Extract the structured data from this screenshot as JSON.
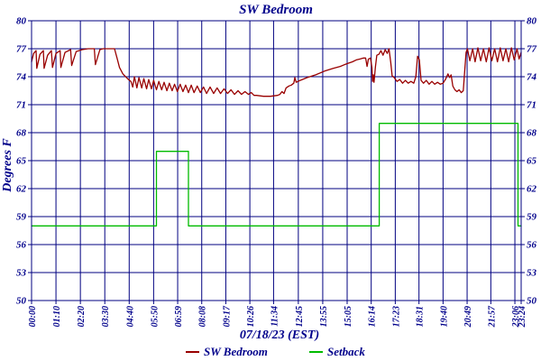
{
  "title": "SW Bedroom",
  "colors": {
    "grid": "#000080",
    "text": "#00008B",
    "sw_bedroom_line": "#990000",
    "setback_line": "#00BB00",
    "background": "#FFFFFF"
  },
  "legend": {
    "items": [
      {
        "label": "SW Bedroom",
        "color": "#990000"
      },
      {
        "label": "Setback",
        "color": "#00BB00"
      }
    ]
  },
  "chart_data": {
    "type": "line",
    "title": "SW Bedroom",
    "xlabel": "07/18/23 (EST)",
    "ylabel": "Degrees F",
    "ylim": [
      50,
      80
    ],
    "y_ticks": [
      80,
      77,
      74,
      71,
      68,
      65,
      62,
      59,
      56,
      53,
      50
    ],
    "x_range_minutes": [
      0,
      1404
    ],
    "x_ticks": [
      {
        "t": 0,
        "label": "00:00"
      },
      {
        "t": 70,
        "label": "01:10"
      },
      {
        "t": 140,
        "label": "02:20"
      },
      {
        "t": 210,
        "label": "03:30"
      },
      {
        "t": 280,
        "label": "04:40"
      },
      {
        "t": 350,
        "label": "05:50"
      },
      {
        "t": 419,
        "label": "06:59"
      },
      {
        "t": 488,
        "label": "08:08"
      },
      {
        "t": 557,
        "label": "09:17"
      },
      {
        "t": 626,
        "label": "10:26"
      },
      {
        "t": 694,
        "label": "11:34"
      },
      {
        "t": 765,
        "label": "12:45"
      },
      {
        "t": 835,
        "label": "13:55"
      },
      {
        "t": 905,
        "label": "15:05"
      },
      {
        "t": 974,
        "label": "16:14"
      },
      {
        "t": 1043,
        "label": "17:23"
      },
      {
        "t": 1111,
        "label": "18:31"
      },
      {
        "t": 1180,
        "label": "19:40"
      },
      {
        "t": 1249,
        "label": "20:49"
      },
      {
        "t": 1317,
        "label": "21:57"
      },
      {
        "t": 1386,
        "label": "23:06"
      },
      {
        "t": 1404,
        "label": "23:24"
      }
    ],
    "grid": true,
    "legend_position": "bottom",
    "series": [
      {
        "name": "SW Bedroom",
        "color": "#990000",
        "unit": "degF",
        "points": [
          [
            0,
            75.6
          ],
          [
            6,
            76.5
          ],
          [
            13,
            76.8
          ],
          [
            15,
            74.9
          ],
          [
            24,
            76.4
          ],
          [
            34,
            76.8
          ],
          [
            36,
            74.9
          ],
          [
            46,
            76.3
          ],
          [
            57,
            76.8
          ],
          [
            60,
            75.0
          ],
          [
            70,
            76.5
          ],
          [
            82,
            76.8
          ],
          [
            84,
            75.0
          ],
          [
            96,
            76.6
          ],
          [
            112,
            76.9
          ],
          [
            115,
            75.2
          ],
          [
            128,
            76.7
          ],
          [
            145,
            76.9
          ],
          [
            162,
            77.0
          ],
          [
            180,
            77.0
          ],
          [
            183,
            75.3
          ],
          [
            196,
            76.9
          ],
          [
            205,
            77.0
          ],
          [
            238,
            77.0
          ],
          [
            245,
            76.0
          ],
          [
            252,
            75.0
          ],
          [
            262,
            74.3
          ],
          [
            275,
            73.8
          ],
          [
            285,
            73.5
          ],
          [
            290,
            72.9
          ],
          [
            295,
            74.0
          ],
          [
            302,
            72.8
          ],
          [
            308,
            73.9
          ],
          [
            316,
            72.8
          ],
          [
            322,
            73.8
          ],
          [
            330,
            72.7
          ],
          [
            336,
            73.7
          ],
          [
            344,
            72.7
          ],
          [
            350,
            73.6
          ],
          [
            358,
            72.6
          ],
          [
            365,
            73.5
          ],
          [
            373,
            72.6
          ],
          [
            380,
            73.4
          ],
          [
            388,
            72.5
          ],
          [
            395,
            73.3
          ],
          [
            403,
            72.5
          ],
          [
            410,
            73.2
          ],
          [
            418,
            72.4
          ],
          [
            426,
            73.2
          ],
          [
            434,
            72.4
          ],
          [
            442,
            73.1
          ],
          [
            450,
            72.3
          ],
          [
            458,
            73.1
          ],
          [
            466,
            72.3
          ],
          [
            475,
            73.0
          ],
          [
            484,
            72.3
          ],
          [
            493,
            72.9
          ],
          [
            502,
            72.2
          ],
          [
            512,
            72.9
          ],
          [
            522,
            72.2
          ],
          [
            532,
            72.8
          ],
          [
            542,
            72.2
          ],
          [
            552,
            72.7
          ],
          [
            562,
            72.2
          ],
          [
            572,
            72.6
          ],
          [
            582,
            72.1
          ],
          [
            592,
            72.5
          ],
          [
            602,
            72.1
          ],
          [
            612,
            72.4
          ],
          [
            622,
            72.1
          ],
          [
            630,
            72.3
          ],
          [
            638,
            72.0
          ],
          [
            645,
            72.0
          ],
          [
            665,
            71.9
          ],
          [
            685,
            71.9
          ],
          [
            705,
            72.0
          ],
          [
            712,
            72.1
          ],
          [
            718,
            72.4
          ],
          [
            724,
            72.2
          ],
          [
            730,
            72.8
          ],
          [
            738,
            73.0
          ],
          [
            745,
            73.1
          ],
          [
            752,
            73.3
          ],
          [
            755,
            73.9
          ],
          [
            759,
            73.4
          ],
          [
            770,
            73.6
          ],
          [
            790,
            73.9
          ],
          [
            815,
            74.2
          ],
          [
            840,
            74.6
          ],
          [
            865,
            74.9
          ],
          [
            885,
            75.1
          ],
          [
            905,
            75.4
          ],
          [
            920,
            75.6
          ],
          [
            931,
            75.8
          ],
          [
            942,
            75.9
          ],
          [
            952,
            76.0
          ],
          [
            958,
            76.0
          ],
          [
            962,
            75.1
          ],
          [
            966,
            75.9
          ],
          [
            972,
            76.0
          ],
          [
            976,
            75.0
          ],
          [
            978,
            73.5
          ],
          [
            980,
            74.2
          ],
          [
            982,
            73.4
          ],
          [
            986,
            75.0
          ],
          [
            990,
            76.3
          ],
          [
            996,
            76.4
          ],
          [
            1002,
            76.8
          ],
          [
            1008,
            76.3
          ],
          [
            1014,
            76.9
          ],
          [
            1020,
            76.5
          ],
          [
            1025,
            77.0
          ],
          [
            1030,
            75.5
          ],
          [
            1034,
            74.1
          ],
          [
            1040,
            73.9
          ],
          [
            1048,
            73.5
          ],
          [
            1056,
            73.7
          ],
          [
            1064,
            73.3
          ],
          [
            1072,
            73.6
          ],
          [
            1080,
            73.3
          ],
          [
            1088,
            73.5
          ],
          [
            1096,
            73.3
          ],
          [
            1102,
            74.0
          ],
          [
            1107,
            76.2
          ],
          [
            1112,
            75.8
          ],
          [
            1117,
            73.6
          ],
          [
            1124,
            73.3
          ],
          [
            1132,
            73.6
          ],
          [
            1140,
            73.2
          ],
          [
            1148,
            73.5
          ],
          [
            1156,
            73.2
          ],
          [
            1164,
            73.4
          ],
          [
            1172,
            73.2
          ],
          [
            1180,
            73.3
          ],
          [
            1188,
            73.8
          ],
          [
            1194,
            74.3
          ],
          [
            1199,
            73.9
          ],
          [
            1203,
            74.2
          ],
          [
            1208,
            73.0
          ],
          [
            1214,
            72.6
          ],
          [
            1220,
            72.4
          ],
          [
            1226,
            72.6
          ],
          [
            1232,
            72.3
          ],
          [
            1238,
            72.5
          ],
          [
            1242,
            74.5
          ],
          [
            1246,
            76.6
          ],
          [
            1250,
            77.0
          ],
          [
            1257,
            75.7
          ],
          [
            1265,
            77.0
          ],
          [
            1272,
            75.6
          ],
          [
            1280,
            77.1
          ],
          [
            1288,
            75.7
          ],
          [
            1296,
            77.0
          ],
          [
            1304,
            75.6
          ],
          [
            1312,
            77.1
          ],
          [
            1320,
            75.7
          ],
          [
            1328,
            77.0
          ],
          [
            1336,
            75.6
          ],
          [
            1344,
            77.1
          ],
          [
            1352,
            75.7
          ],
          [
            1360,
            77.0
          ],
          [
            1368,
            75.6
          ],
          [
            1376,
            77.1
          ],
          [
            1384,
            75.8
          ],
          [
            1392,
            77.0
          ],
          [
            1398,
            75.9
          ],
          [
            1404,
            76.6
          ]
        ]
      },
      {
        "name": "Setback",
        "color": "#00BB00",
        "unit": "degF",
        "points": [
          [
            0,
            58
          ],
          [
            358,
            58
          ],
          [
            358,
            66
          ],
          [
            450,
            66
          ],
          [
            450,
            58
          ],
          [
            997,
            58
          ],
          [
            997,
            69
          ],
          [
            1395,
            69
          ],
          [
            1395,
            58
          ],
          [
            1404,
            58
          ]
        ]
      }
    ]
  }
}
